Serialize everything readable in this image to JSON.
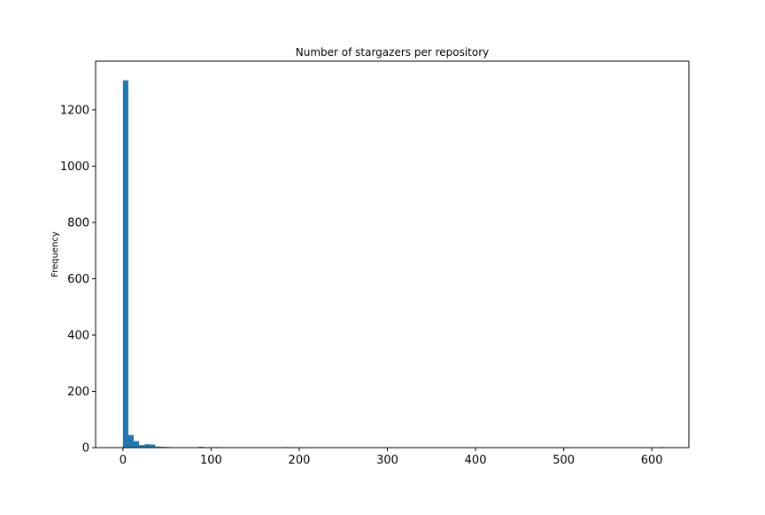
{
  "chart_data": {
    "type": "bar",
    "subtype": "histogram",
    "title": "Number of stargazers per repository",
    "xlabel": "",
    "ylabel": "Frequency",
    "xlim": [
      -31,
      642
    ],
    "ylim": [
      0,
      1373
    ],
    "xticks": [
      0,
      100,
      200,
      300,
      400,
      500,
      600
    ],
    "yticks": [
      0,
      200,
      400,
      600,
      800,
      1000,
      1200
    ],
    "grid": false,
    "legend": "none",
    "bar_color": "#1f77b4",
    "bin_width": 6.1,
    "bins": [
      {
        "x0": 0.0,
        "x1": 6.1,
        "count": 1305
      },
      {
        "x0": 6.1,
        "x1": 12.2,
        "count": 45
      },
      {
        "x0": 12.2,
        "x1": 18.3,
        "count": 23
      },
      {
        "x0": 18.3,
        "x1": 24.4,
        "count": 9
      },
      {
        "x0": 24.4,
        "x1": 30.5,
        "count": 12
      },
      {
        "x0": 30.5,
        "x1": 36.6,
        "count": 11
      },
      {
        "x0": 36.6,
        "x1": 42.7,
        "count": 4
      },
      {
        "x0": 42.7,
        "x1": 48.8,
        "count": 3
      },
      {
        "x0": 48.8,
        "x1": 54.9,
        "count": 2
      },
      {
        "x0": 85.4,
        "x1": 91.5,
        "count": 3
      },
      {
        "x0": 103.7,
        "x1": 109.8,
        "count": 2
      },
      {
        "x0": 183.0,
        "x1": 189.1,
        "count": 2
      },
      {
        "x0": 604.0,
        "x1": 610.1,
        "count": 1
      },
      {
        "x0": 610.1,
        "x1": 616.2,
        "count": 2
      }
    ]
  }
}
